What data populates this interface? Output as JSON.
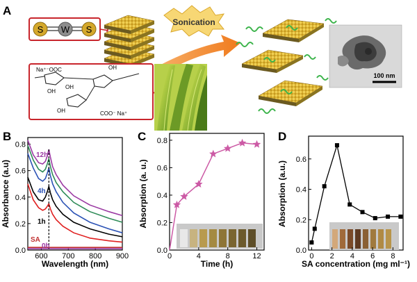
{
  "panels": {
    "A": {
      "label": "A",
      "ws2_atoms": [
        "S",
        "W",
        "S"
      ],
      "process_label": "Sonication",
      "alginate": {
        "top_left": "Na⁺⁻OOC",
        "bottom_right": "COO⁻ Na⁺",
        "groups": [
          "OH",
          "OH",
          "OH",
          "OH"
        ]
      },
      "tem_scale_bar": "100 nm"
    },
    "B": {
      "label": "B",
      "xlabel": "Wavelength (nm)",
      "ylabel": "Absorbance (a.u)",
      "curve_labels": [
        "12h",
        "4h",
        "1h",
        "SA",
        "0h"
      ]
    },
    "C": {
      "label": "C",
      "xlabel": "Time (h)",
      "ylabel": "Absorption (a. u.)"
    },
    "D": {
      "label": "D",
      "xlabel": "SA concentration (mg ml⁻¹)",
      "ylabel": "Absorption (a.u.)"
    }
  },
  "chart_data": [
    {
      "panel": "B",
      "type": "line",
      "xlabel": "Wavelength (nm)",
      "ylabel": "Absorbance (a.u)",
      "xlim": [
        550,
        900
      ],
      "ylim": [
        0,
        0.85
      ],
      "xticks": [
        600,
        700,
        800,
        900
      ],
      "yticks": [
        0.0,
        0.2,
        0.4,
        0.6,
        0.8
      ],
      "grid": false,
      "x": [
        550,
        570,
        590,
        605,
        615,
        622,
        628,
        634,
        642,
        655,
        680,
        720,
        780,
        850,
        900
      ],
      "series": [
        {
          "name": "12h",
          "color": "#9b3aa3",
          "values": [
            0.83,
            0.72,
            0.66,
            0.65,
            0.67,
            0.71,
            0.76,
            0.7,
            0.63,
            0.57,
            0.49,
            0.41,
            0.34,
            0.29,
            0.26
          ]
        },
        {
          "name": "",
          "color": "#2e8b57",
          "values": [
            0.79,
            0.68,
            0.61,
            0.59,
            0.61,
            0.65,
            0.69,
            0.63,
            0.57,
            0.51,
            0.44,
            0.36,
            0.29,
            0.24,
            0.21
          ]
        },
        {
          "name": "4h",
          "color": "#2b52b5",
          "values": [
            0.73,
            0.62,
            0.54,
            0.52,
            0.54,
            0.58,
            0.62,
            0.56,
            0.5,
            0.44,
            0.36,
            0.28,
            0.21,
            0.16,
            0.13
          ]
        },
        {
          "name": "1h",
          "color": "#000000",
          "values": [
            0.55,
            0.44,
            0.38,
            0.37,
            0.4,
            0.44,
            0.48,
            0.43,
            0.38,
            0.33,
            0.27,
            0.21,
            0.16,
            0.12,
            0.1
          ]
        },
        {
          "name": "",
          "color": "#e02020",
          "values": [
            0.5,
            0.38,
            0.32,
            0.3,
            0.31,
            0.33,
            0.35,
            0.31,
            0.27,
            0.23,
            0.18,
            0.13,
            0.09,
            0.07,
            0.06
          ]
        },
        {
          "name": "SA",
          "color": "#c03030",
          "values": [
            0.02,
            0.02,
            0.02,
            0.02,
            0.02,
            0.02,
            0.02,
            0.02,
            0.02,
            0.02,
            0.02,
            0.02,
            0.02,
            0.02,
            0.02
          ]
        },
        {
          "name": "0h",
          "color": "#9b3aa3",
          "values": [
            0.01,
            0.01,
            0.01,
            0.01,
            0.01,
            0.01,
            0.01,
            0.01,
            0.01,
            0.01,
            0.01,
            0.01,
            0.01,
            0.01,
            0.01
          ]
        }
      ],
      "peak_marker_x": 628
    },
    {
      "panel": "C",
      "type": "line",
      "xlabel": "Time (h)",
      "ylabel": "Absorption (a. u.)",
      "xlim": [
        0,
        13
      ],
      "ylim": [
        0,
        0.85
      ],
      "xticks": [
        0,
        4,
        8,
        12
      ],
      "yticks": [
        0.0,
        0.2,
        0.4,
        0.6,
        0.8
      ],
      "grid": false,
      "x": [
        0,
        1,
        2,
        4,
        6,
        8,
        10,
        12
      ],
      "values": [
        0.0,
        0.33,
        0.39,
        0.48,
        0.7,
        0.74,
        0.78,
        0.77
      ],
      "color": "#cc5aa5",
      "marker": "star"
    },
    {
      "panel": "D",
      "type": "line",
      "xlabel": "SA concentration (mg ml⁻¹)",
      "ylabel": "Absorption (a.u.)",
      "xlim": [
        -0.3,
        9
      ],
      "ylim": [
        0,
        0.75
      ],
      "xticks": [
        0,
        2,
        4,
        6,
        8
      ],
      "yticks": [
        0.0,
        0.2,
        0.4,
        0.6
      ],
      "grid": false,
      "x": [
        0,
        0.3,
        1.25,
        2.5,
        3.75,
        5,
        6.25,
        7.5,
        8.75
      ],
      "values": [
        0.05,
        0.14,
        0.42,
        0.69,
        0.3,
        0.25,
        0.21,
        0.22,
        0.22
      ],
      "color": "#000000",
      "marker": "square"
    }
  ]
}
